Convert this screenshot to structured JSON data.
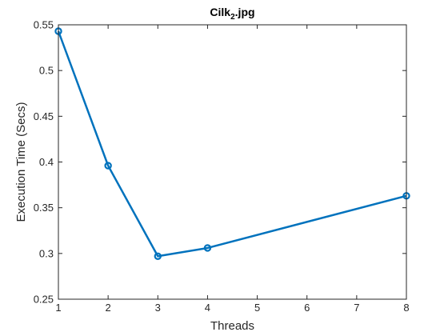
{
  "chart_data": {
    "type": "line",
    "title": {
      "prefix": "Cilk",
      "subscript": "2",
      "suffix": ".jpg"
    },
    "xlabel": "Threads",
    "ylabel": "Execution Time (Secs)",
    "xlim": [
      1,
      8
    ],
    "ylim": [
      0.25,
      0.55
    ],
    "xticks": [
      1,
      2,
      3,
      4,
      5,
      6,
      7,
      8
    ],
    "xtick_labels": [
      "1",
      "2",
      "3",
      "4",
      "5",
      "6",
      "7",
      "8"
    ],
    "yticks": [
      0.25,
      0.3,
      0.35,
      0.4,
      0.45,
      0.5,
      0.55
    ],
    "ytick_labels": [
      "0.25",
      "0.3",
      "0.35",
      "0.4",
      "0.45",
      "0.5",
      "0.55"
    ],
    "grid": false,
    "series": [
      {
        "marker": "circle",
        "color": "#0072BD",
        "x": [
          1,
          2,
          3,
          4,
          8
        ],
        "y": [
          0.543,
          0.396,
          0.297,
          0.306,
          0.363
        ]
      }
    ]
  }
}
